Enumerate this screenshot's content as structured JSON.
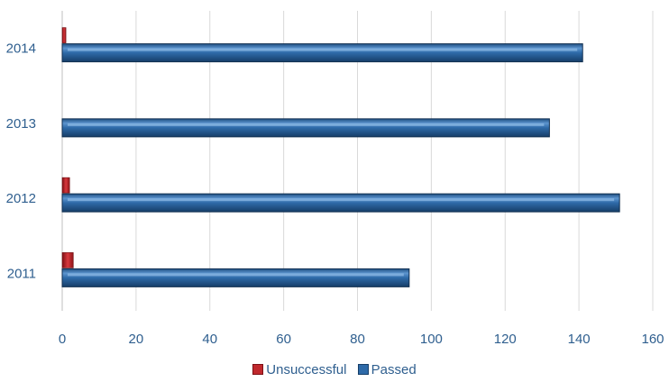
{
  "chart_data": {
    "type": "bar",
    "orientation": "horizontal",
    "categories": [
      "2011",
      "2012",
      "2013",
      "2014"
    ],
    "series": [
      {
        "name": "Unsuccessful",
        "values": [
          3,
          2,
          0,
          1
        ],
        "color": "#c0282d"
      },
      {
        "name": "Passed",
        "values": [
          94,
          151,
          132,
          141
        ],
        "color": "#2e6aa8"
      }
    ],
    "xlim": [
      0,
      160
    ],
    "xticks": [
      0,
      20,
      40,
      60,
      80,
      100,
      120,
      140,
      160
    ],
    "grid": "vertical",
    "legend_position": "bottom"
  },
  "legend": {
    "unsuccessful": "Unsuccessful",
    "passed": "Passed"
  }
}
